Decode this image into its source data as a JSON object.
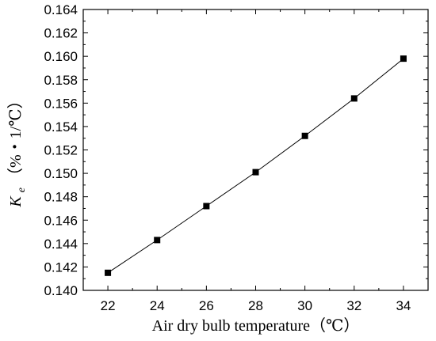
{
  "chart_data": {
    "type": "line",
    "title": "",
    "xlabel": "Air dry bulb temperature（℃）",
    "ylabel": {
      "symbol": "K",
      "subscript": "e",
      "unit": "（%・1/℃）"
    },
    "xlim": [
      21,
      35
    ],
    "ylim": [
      0.14,
      0.164
    ],
    "x_ticks": [
      22,
      24,
      26,
      28,
      30,
      32,
      34
    ],
    "x_tick_labels": [
      "22",
      "24",
      "26",
      "28",
      "30",
      "32",
      "34"
    ],
    "y_ticks": [
      0.14,
      0.142,
      0.144,
      0.146,
      0.148,
      0.15,
      0.152,
      0.154,
      0.156,
      0.158,
      0.16,
      0.162,
      0.164
    ],
    "y_tick_labels": [
      "0.140",
      "0.142",
      "0.144",
      "0.146",
      "0.148",
      "0.150",
      "0.152",
      "0.154",
      "0.156",
      "0.158",
      "0.160",
      "0.162",
      "0.164"
    ],
    "grid": false,
    "legend": "none",
    "series": [
      {
        "marker": "square",
        "color": "#000000",
        "x": [
          22,
          24,
          26,
          28,
          30,
          32,
          34
        ],
        "y": [
          0.1415,
          0.1443,
          0.1472,
          0.1501,
          0.1532,
          0.1564,
          0.1598
        ]
      }
    ]
  }
}
